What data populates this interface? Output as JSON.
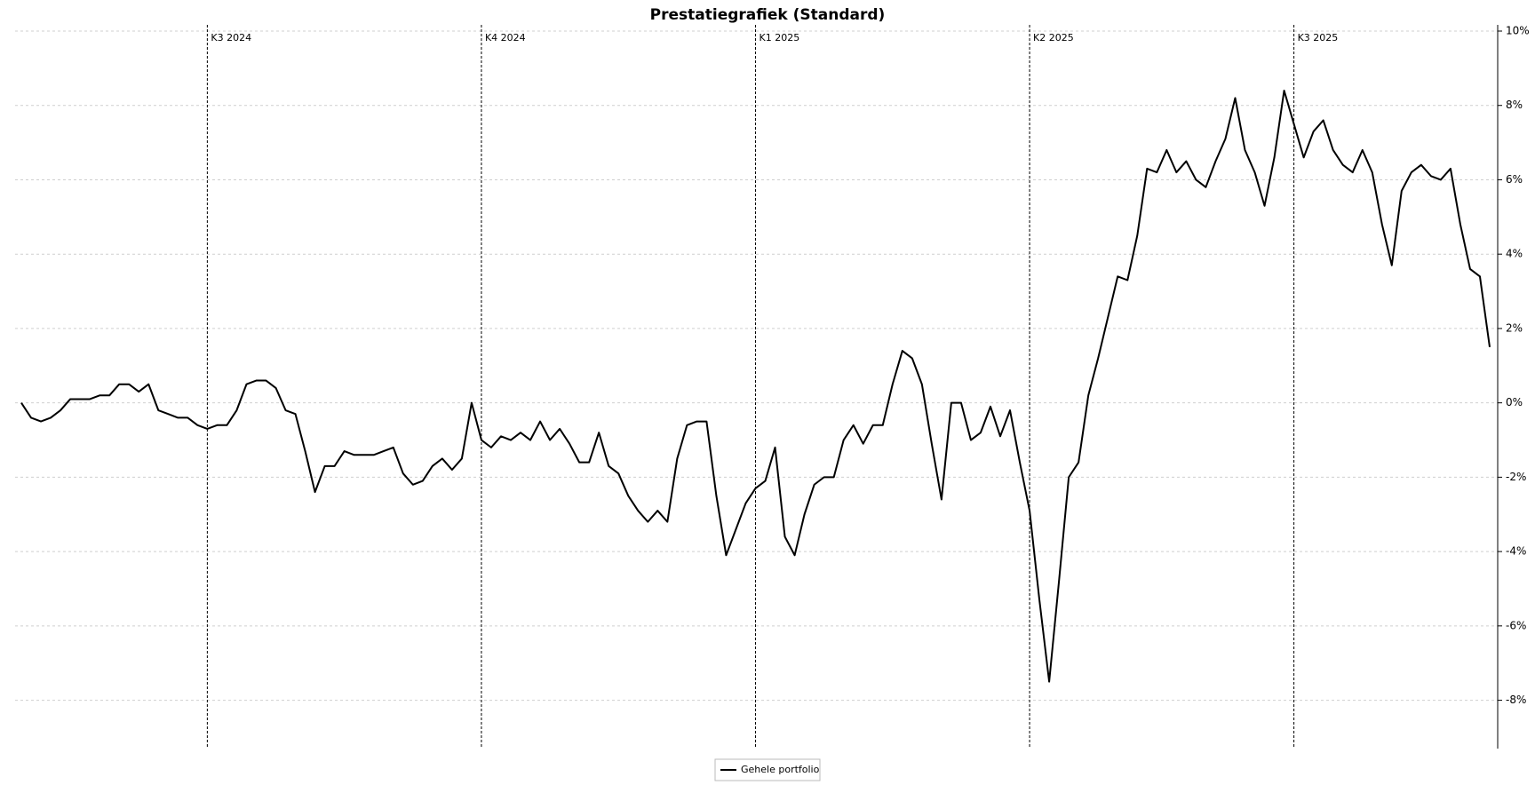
{
  "chart_data": {
    "type": "line",
    "title": "Prestatiegrafiek (Standard)",
    "categories": [
      null,
      null,
      null,
      null,
      null,
      null,
      null,
      null,
      null,
      null,
      null,
      null,
      null,
      null,
      null,
      null,
      null,
      null,
      null,
      "K3 2024",
      null,
      null,
      null,
      null,
      null,
      null,
      null,
      null,
      null,
      null,
      null,
      null,
      null,
      null,
      null,
      null,
      null,
      null,
      null,
      null,
      null,
      null,
      null,
      null,
      null,
      null,
      null,
      "K4 2024",
      null,
      null,
      null,
      null,
      null,
      null,
      null,
      null,
      null,
      null,
      null,
      null,
      null,
      null,
      null,
      null,
      null,
      null,
      null,
      null,
      null,
      null,
      null,
      null,
      null,
      null,
      null,
      "K1 2025",
      null,
      null,
      null,
      null,
      null,
      null,
      null,
      null,
      null,
      null,
      null,
      null,
      null,
      null,
      null,
      null,
      null,
      null,
      null,
      null,
      null,
      null,
      null,
      null,
      null,
      null,
      null,
      "K2 2025",
      null,
      null,
      null,
      null,
      null,
      null,
      null,
      null,
      null,
      null,
      null,
      null,
      null,
      null,
      null,
      null,
      null,
      null,
      null,
      null,
      null,
      null,
      null,
      null,
      null,
      null,
      "K3 2025",
      null,
      null,
      null,
      null,
      null,
      null,
      null,
      null,
      null,
      null,
      null,
      null,
      null,
      null,
      null,
      null,
      null,
      null,
      null,
      null
    ],
    "series": [
      {
        "name": "Gehele portfolio",
        "color": "#000000",
        "values": [
          0,
          -0.4,
          -0.5,
          -0.4,
          -0.2,
          0.1,
          0.1,
          0.1,
          0.2,
          0.2,
          0.5,
          0.5,
          0.3,
          0.5,
          -0.2,
          -0.3,
          -0.4,
          -0.4,
          -0.6,
          -0.7,
          -0.6,
          -0.6,
          -0.2,
          0.5,
          0.6,
          0.6,
          0.4,
          -0.2,
          -0.3,
          -1.3,
          -2.4,
          -1.7,
          -1.7,
          -1.3,
          -1.4,
          -1.4,
          -1.4,
          -1.3,
          -1.2,
          -1.9,
          -2.2,
          -2.1,
          -1.7,
          -1.5,
          -1.8,
          -1.5,
          0.0,
          -1.0,
          -1.2,
          -0.9,
          -1.0,
          -0.8,
          -1.0,
          -0.5,
          -1.0,
          -0.7,
          -1.1,
          -1.6,
          -1.6,
          -0.8,
          -1.7,
          -1.9,
          -2.5,
          -2.9,
          -3.2,
          -2.9,
          -3.2,
          -1.5,
          -0.6,
          -0.5,
          -0.5,
          -2.5,
          -4.1,
          -3.4,
          -2.7,
          -2.3,
          -2.1,
          -1.2,
          -3.6,
          -4.1,
          -3.0,
          -2.2,
          -2.0,
          -2.0,
          -1.0,
          -0.6,
          -1.1,
          -0.6,
          -0.6,
          0.5,
          1.4,
          1.2,
          0.5,
          -1.1,
          -2.6,
          0.0,
          0.0,
          -1.0,
          -0.8,
          -0.1,
          -0.9,
          -0.2,
          -1.6,
          -2.9,
          -5.3,
          -7.5,
          -4.8,
          -2.0,
          -1.6,
          0.2,
          1.2,
          2.3,
          3.4,
          3.3,
          4.5,
          6.3,
          6.2,
          6.8,
          6.2,
          6.5,
          6.0,
          5.8,
          6.5,
          7.1,
          8.2,
          6.8,
          6.2,
          5.3,
          6.6,
          8.4,
          7.5,
          6.6,
          7.3,
          7.6,
          6.8,
          6.4,
          6.2,
          6.8,
          6.2,
          4.8,
          3.7,
          5.7,
          6.2,
          6.4,
          6.1,
          6.0,
          6.3,
          4.8,
          3.6,
          3.4,
          1.5
        ]
      }
    ],
    "ylim": [
      -9.3,
      10
    ],
    "yticks": [
      {
        "value": -8,
        "label": "-8%"
      },
      {
        "value": -6,
        "label": "-6%"
      },
      {
        "value": -4,
        "label": "-4%"
      },
      {
        "value": -2,
        "label": "-2%"
      },
      {
        "value": 0,
        "label": "0%"
      },
      {
        "value": 2,
        "label": "2%"
      },
      {
        "value": 4,
        "label": "4%"
      },
      {
        "value": 6,
        "label": "6%"
      },
      {
        "value": 8,
        "label": "8%"
      },
      {
        "value": 10,
        "label": "10%"
      }
    ],
    "grid": true
  }
}
